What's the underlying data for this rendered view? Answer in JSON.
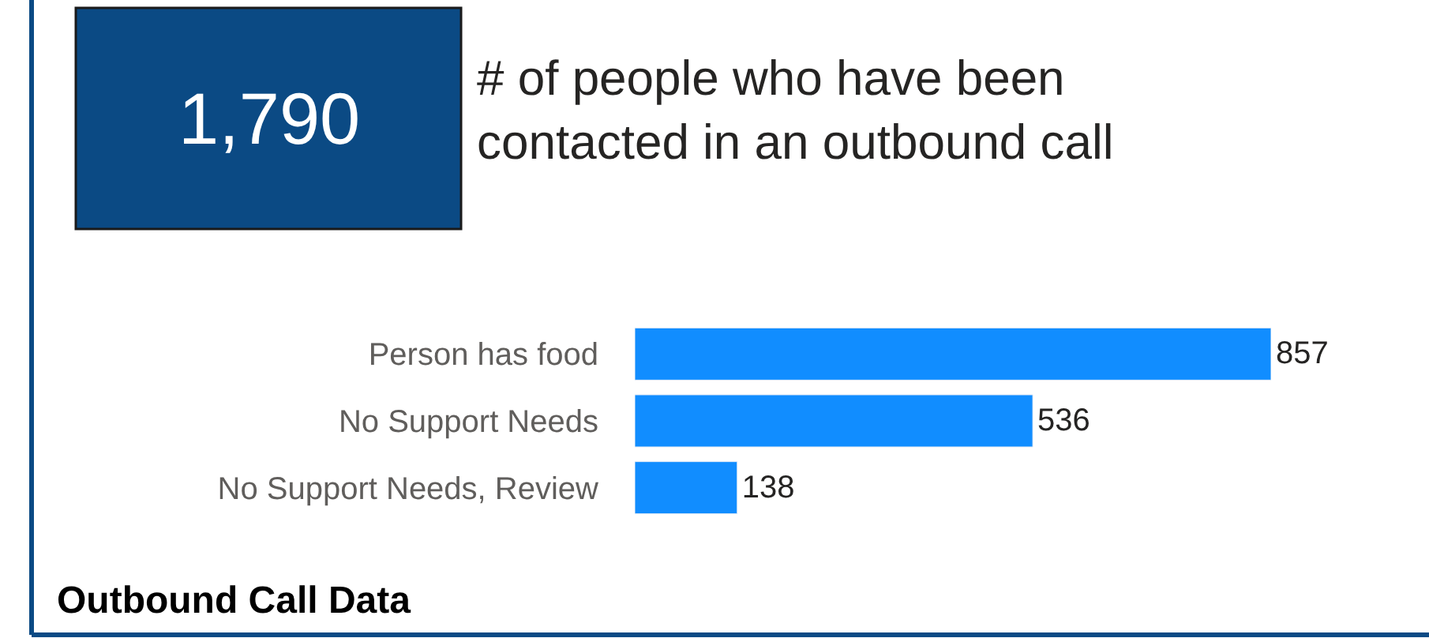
{
  "chart_data": [
    {
      "type": "other",
      "title": "# of people who have been contacted in an outbound call",
      "annotations": [
        "1,790"
      ],
      "color": "#0b4a84"
    },
    {
      "type": "bar",
      "orientation": "horizontal",
      "categories": [
        "Person has food",
        "No Support Needs",
        "No Support Needs, Review"
      ],
      "values": [
        857,
        536,
        138
      ],
      "color": "#118dff",
      "data_labels": true,
      "annotations": [
        "Outbound Call Data"
      ]
    }
  ]
}
